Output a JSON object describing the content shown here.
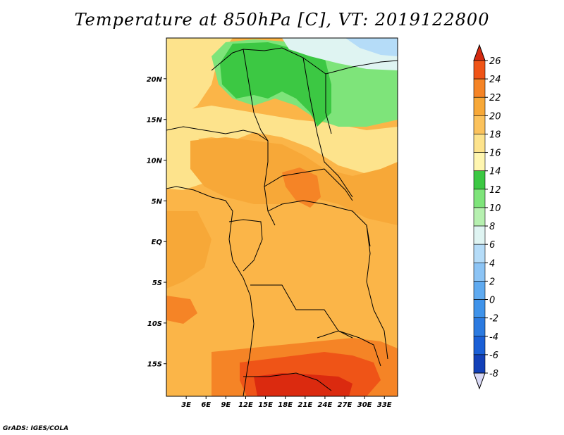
{
  "title": "Temperature at 850hPa [C], VT: 2019122800",
  "credit": "GrADS: IGES/COLA",
  "map": {
    "lat_range": [
      -19,
      25
    ],
    "lon_range": [
      0,
      35
    ],
    "lat_ticks": [
      {
        "value": 20,
        "label": "20N"
      },
      {
        "value": 15,
        "label": "15N"
      },
      {
        "value": 10,
        "label": "10N"
      },
      {
        "value": 5,
        "label": "5N"
      },
      {
        "value": 0,
        "label": "EQ"
      },
      {
        "value": -5,
        "label": "5S"
      },
      {
        "value": -10,
        "label": "10S"
      },
      {
        "value": -15,
        "label": "15S"
      }
    ],
    "lon_ticks": [
      {
        "value": 3,
        "label": "3E"
      },
      {
        "value": 6,
        "label": "6E"
      },
      {
        "value": 9,
        "label": "9E"
      },
      {
        "value": 12,
        "label": "12E"
      },
      {
        "value": 15,
        "label": "15E"
      },
      {
        "value": 18,
        "label": "18E"
      },
      {
        "value": 21,
        "label": "21E"
      },
      {
        "value": 24,
        "label": "24E"
      },
      {
        "value": 27,
        "label": "27E"
      },
      {
        "value": 30,
        "label": "30E"
      },
      {
        "value": 33,
        "label": "33E"
      }
    ]
  },
  "colorbar": {
    "levels": [
      -8,
      -6,
      -4,
      -2,
      0,
      2,
      4,
      6,
      8,
      10,
      12,
      14,
      16,
      18,
      20,
      22,
      24,
      26
    ],
    "labels": [
      "26",
      "24",
      "22",
      "20",
      "18",
      "16",
      "14",
      "12",
      "10",
      "8",
      "6",
      "4",
      "2",
      "0",
      "-2",
      "-4",
      "-6",
      "-8"
    ],
    "colors": [
      "#0d0f6e",
      "#1240b8",
      "#1a5fd6",
      "#2b7ae0",
      "#3f93ea",
      "#5faaf0",
      "#8cc4f5",
      "#b5dcf8",
      "#dff4f2",
      "#b6f0b0",
      "#7ee47a",
      "#3cc843",
      "#fff6b0",
      "#fde38c",
      "#fbc25c",
      "#f7a838",
      "#f58426",
      "#ef5417",
      "#db2a0f"
    ],
    "under_color": "#d8d8f5",
    "over_color": "#d42a10"
  },
  "fields": [
    {
      "name": "background",
      "color": "#fbb548"
    },
    {
      "name": "northwest-yellow",
      "color": "#fde38c"
    },
    {
      "name": "sahel-yellow",
      "color": "#fde38c"
    },
    {
      "name": "sahel-green",
      "color": "#3cc843"
    },
    {
      "name": "sahel-light-green",
      "color": "#7ee47a"
    },
    {
      "name": "northeast-pale",
      "color": "#dff4f2"
    },
    {
      "name": "northeast-blue",
      "color": "#b5dcf8"
    },
    {
      "name": "chad-orange",
      "color": "#f7a838"
    },
    {
      "name": "car-orange",
      "color": "#f58426"
    },
    {
      "name": "south-orange",
      "color": "#f58426"
    },
    {
      "name": "south-red",
      "color": "#ef5417"
    },
    {
      "name": "south-deep-red",
      "color": "#db2a0f"
    },
    {
      "name": "coast-orange",
      "color": "#f7a838"
    }
  ]
}
